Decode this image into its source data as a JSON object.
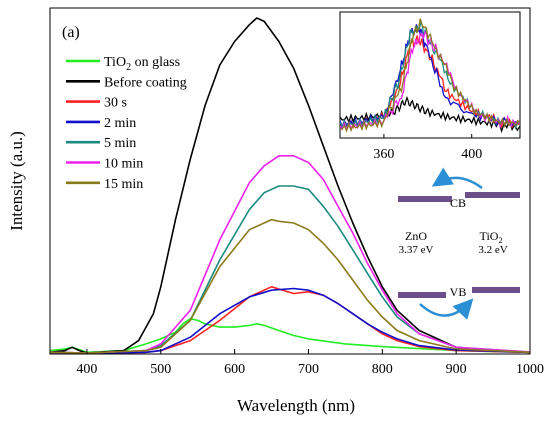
{
  "chart_data": {
    "type": "line",
    "panel_label": "(a)",
    "xlabel": "Wavelength (nm)",
    "ylabel": "Intensity (a.u.)",
    "xlim": [
      350,
      1000
    ],
    "x_ticks": [
      400,
      500,
      600,
      700,
      800,
      900,
      1000
    ],
    "ylim": [
      0,
      1
    ],
    "grid": false,
    "legend_position": "top-left",
    "series": [
      {
        "name": "TiO2 on glass",
        "color": "#22ee22",
        "points": [
          [
            350,
            0.01
          ],
          [
            370,
            0.015
          ],
          [
            380,
            0.02
          ],
          [
            400,
            0.005
          ],
          [
            450,
            0.01
          ],
          [
            480,
            0.03
          ],
          [
            500,
            0.045
          ],
          [
            520,
            0.065
          ],
          [
            530,
            0.09
          ],
          [
            540,
            0.105
          ],
          [
            550,
            0.1
          ],
          [
            560,
            0.09
          ],
          [
            580,
            0.08
          ],
          [
            600,
            0.08
          ],
          [
            620,
            0.085
          ],
          [
            630,
            0.09
          ],
          [
            640,
            0.085
          ],
          [
            660,
            0.07
          ],
          [
            680,
            0.055
          ],
          [
            700,
            0.045
          ],
          [
            750,
            0.03
          ],
          [
            800,
            0.022
          ],
          [
            850,
            0.016
          ],
          [
            900,
            0.01
          ],
          [
            950,
            0.007
          ],
          [
            1000,
            0.005
          ]
        ]
      },
      {
        "name": "Before coating",
        "color": "#000000",
        "points": [
          [
            350,
            0.005
          ],
          [
            370,
            0.01
          ],
          [
            380,
            0.02
          ],
          [
            390,
            0.01
          ],
          [
            400,
            0.003
          ],
          [
            450,
            0.01
          ],
          [
            470,
            0.04
          ],
          [
            490,
            0.12
          ],
          [
            500,
            0.2
          ],
          [
            520,
            0.4
          ],
          [
            540,
            0.58
          ],
          [
            560,
            0.74
          ],
          [
            580,
            0.86
          ],
          [
            600,
            0.93
          ],
          [
            620,
            0.98
          ],
          [
            630,
            1.0
          ],
          [
            640,
            0.99
          ],
          [
            660,
            0.93
          ],
          [
            680,
            0.85
          ],
          [
            700,
            0.74
          ],
          [
            720,
            0.62
          ],
          [
            740,
            0.5
          ],
          [
            760,
            0.39
          ],
          [
            780,
            0.29
          ],
          [
            800,
            0.2
          ],
          [
            820,
            0.13
          ],
          [
            850,
            0.07
          ],
          [
            900,
            0.02
          ],
          [
            950,
            0.008
          ],
          [
            1000,
            0.005
          ]
        ]
      },
      {
        "name": "30 s",
        "color": "#ff2020",
        "points": [
          [
            350,
            0.005
          ],
          [
            400,
            0.003
          ],
          [
            480,
            0.005
          ],
          [
            500,
            0.01
          ],
          [
            540,
            0.04
          ],
          [
            580,
            0.1
          ],
          [
            620,
            0.17
          ],
          [
            650,
            0.2
          ],
          [
            680,
            0.18
          ],
          [
            700,
            0.185
          ],
          [
            720,
            0.175
          ],
          [
            740,
            0.15
          ],
          [
            760,
            0.12
          ],
          [
            780,
            0.09
          ],
          [
            800,
            0.06
          ],
          [
            820,
            0.04
          ],
          [
            850,
            0.022
          ],
          [
            900,
            0.01
          ],
          [
            1000,
            0.005
          ]
        ]
      },
      {
        "name": "2 min",
        "color": "#1010cc",
        "points": [
          [
            350,
            0.005
          ],
          [
            400,
            0.003
          ],
          [
            480,
            0.005
          ],
          [
            500,
            0.01
          ],
          [
            540,
            0.05
          ],
          [
            580,
            0.12
          ],
          [
            620,
            0.17
          ],
          [
            650,
            0.19
          ],
          [
            680,
            0.195
          ],
          [
            700,
            0.19
          ],
          [
            720,
            0.175
          ],
          [
            740,
            0.15
          ],
          [
            760,
            0.12
          ],
          [
            780,
            0.09
          ],
          [
            800,
            0.065
          ],
          [
            820,
            0.045
          ],
          [
            850,
            0.025
          ],
          [
            900,
            0.012
          ],
          [
            1000,
            0.005
          ]
        ]
      },
      {
        "name": "5 min",
        "color": "#1a8a80",
        "points": [
          [
            350,
            0.005
          ],
          [
            400,
            0.003
          ],
          [
            480,
            0.01
          ],
          [
            500,
            0.025
          ],
          [
            540,
            0.1
          ],
          [
            580,
            0.28
          ],
          [
            620,
            0.43
          ],
          [
            640,
            0.48
          ],
          [
            660,
            0.5
          ],
          [
            680,
            0.5
          ],
          [
            700,
            0.49
          ],
          [
            720,
            0.44
          ],
          [
            740,
            0.38
          ],
          [
            760,
            0.31
          ],
          [
            780,
            0.24
          ],
          [
            800,
            0.17
          ],
          [
            820,
            0.11
          ],
          [
            850,
            0.06
          ],
          [
            900,
            0.02
          ],
          [
            1000,
            0.006
          ]
        ]
      },
      {
        "name": "10 min",
        "color": "#ee22ee",
        "points": [
          [
            350,
            0.005
          ],
          [
            400,
            0.003
          ],
          [
            480,
            0.01
          ],
          [
            500,
            0.03
          ],
          [
            540,
            0.13
          ],
          [
            580,
            0.34
          ],
          [
            620,
            0.51
          ],
          [
            640,
            0.56
          ],
          [
            660,
            0.59
          ],
          [
            680,
            0.59
          ],
          [
            700,
            0.57
          ],
          [
            720,
            0.52
          ],
          [
            740,
            0.44
          ],
          [
            760,
            0.36
          ],
          [
            780,
            0.27
          ],
          [
            800,
            0.19
          ],
          [
            820,
            0.12
          ],
          [
            850,
            0.06
          ],
          [
            900,
            0.02
          ],
          [
            1000,
            0.006
          ]
        ]
      },
      {
        "name": "15 min",
        "color": "#8a7a1a",
        "points": [
          [
            350,
            0.005
          ],
          [
            400,
            0.003
          ],
          [
            480,
            0.01
          ],
          [
            500,
            0.02
          ],
          [
            540,
            0.1
          ],
          [
            580,
            0.26
          ],
          [
            620,
            0.37
          ],
          [
            650,
            0.4
          ],
          [
            660,
            0.395
          ],
          [
            680,
            0.39
          ],
          [
            700,
            0.37
          ],
          [
            720,
            0.33
          ],
          [
            740,
            0.28
          ],
          [
            760,
            0.22
          ],
          [
            780,
            0.16
          ],
          [
            800,
            0.11
          ],
          [
            820,
            0.07
          ],
          [
            850,
            0.04
          ],
          [
            900,
            0.015
          ],
          [
            1000,
            0.005
          ]
        ]
      }
    ],
    "inset": {
      "xlim": [
        340,
        422
      ],
      "x_ticks": [
        360,
        400
      ],
      "ylim": [
        0,
        1
      ],
      "series": [
        {
          "name": "Before coating",
          "color": "#000000",
          "points": [
            [
              340,
              0.12
            ],
            [
              350,
              0.13
            ],
            [
              360,
              0.15
            ],
            [
              365,
              0.18
            ],
            [
              370,
              0.27
            ],
            [
              375,
              0.22
            ],
            [
              380,
              0.17
            ],
            [
              390,
              0.12
            ],
            [
              400,
              0.09
            ],
            [
              410,
              0.06
            ],
            [
              422,
              0.05
            ]
          ]
        },
        {
          "name": "30 s",
          "color": "#ff2020",
          "points": [
            [
              340,
              0.05
            ],
            [
              350,
              0.07
            ],
            [
              360,
              0.13
            ],
            [
              367,
              0.4
            ],
            [
              372,
              0.75
            ],
            [
              376,
              0.8
            ],
            [
              382,
              0.62
            ],
            [
              390,
              0.3
            ],
            [
              400,
              0.16
            ],
            [
              410,
              0.1
            ],
            [
              422,
              0.07
            ]
          ]
        },
        {
          "name": "2 min",
          "color": "#1010cc",
          "points": [
            [
              340,
              0.05
            ],
            [
              350,
              0.07
            ],
            [
              360,
              0.12
            ],
            [
              367,
              0.5
            ],
            [
              372,
              0.85
            ],
            [
              376,
              0.9
            ],
            [
              380,
              0.7
            ],
            [
              388,
              0.3
            ],
            [
              400,
              0.14
            ],
            [
              410,
              0.1
            ],
            [
              422,
              0.07
            ]
          ]
        },
        {
          "name": "5 min",
          "color": "#1a8a80",
          "points": [
            [
              340,
              0.05
            ],
            [
              350,
              0.07
            ],
            [
              360,
              0.12
            ],
            [
              367,
              0.45
            ],
            [
              372,
              0.85
            ],
            [
              377,
              0.92
            ],
            [
              383,
              0.7
            ],
            [
              392,
              0.38
            ],
            [
              402,
              0.18
            ],
            [
              412,
              0.1
            ],
            [
              422,
              0.07
            ]
          ]
        },
        {
          "name": "10 min",
          "color": "#ee22ee",
          "points": [
            [
              340,
              0.05
            ],
            [
              350,
              0.07
            ],
            [
              360,
              0.1
            ],
            [
              368,
              0.3
            ],
            [
              373,
              0.72
            ],
            [
              378,
              0.85
            ],
            [
              385,
              0.68
            ],
            [
              394,
              0.35
            ],
            [
              404,
              0.16
            ],
            [
              414,
              0.09
            ],
            [
              422,
              0.07
            ]
          ]
        },
        {
          "name": "15 min",
          "color": "#8a7a1a",
          "points": [
            [
              340,
              0.05
            ],
            [
              350,
              0.07
            ],
            [
              360,
              0.1
            ],
            [
              368,
              0.38
            ],
            [
              373,
              0.82
            ],
            [
              377,
              0.95
            ],
            [
              383,
              0.75
            ],
            [
              392,
              0.4
            ],
            [
              402,
              0.18
            ],
            [
              412,
              0.1
            ],
            [
              422,
              0.08
            ]
          ]
        }
      ]
    },
    "band_diagram": {
      "cb_label": "CB",
      "vb_label": "VB",
      "zno_label": "ZnO",
      "zno_energy": "3.37 eV",
      "tio2_label": "TiO",
      "tio2_subscript": "2",
      "tio2_energy": "3.2 eV",
      "bar_color": "#6b4e8a",
      "arrow_color": "#2a8fd4"
    }
  }
}
